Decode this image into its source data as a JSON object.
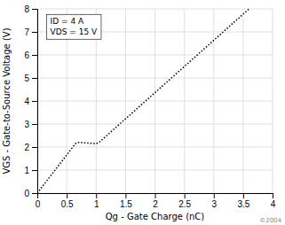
{
  "chart_data": {
    "type": "line",
    "x": [
      0.0,
      0.65,
      0.7,
      1.0,
      1.05,
      3.6
    ],
    "values": [
      0.0,
      2.15,
      2.2,
      2.15,
      2.2,
      8.0
    ],
    "color": "#000000",
    "line_style": "dotted",
    "xlabel": "Qg - Gate Charge (nC)",
    "ylabel": "VGS - Gate-to-Source Voltage (V)",
    "annotations": [
      "ID = 4 A",
      "VDS = 15 V",
      "©2004"
    ],
    "xlim": [
      0,
      4
    ],
    "ylim": [
      0,
      8
    ],
    "xticks": [
      0,
      0.5,
      1,
      1.5,
      2,
      2.5,
      3,
      3.5,
      4
    ],
    "yticks": [
      0,
      1,
      2,
      3,
      4,
      5,
      6,
      7,
      8
    ],
    "grid": true
  }
}
